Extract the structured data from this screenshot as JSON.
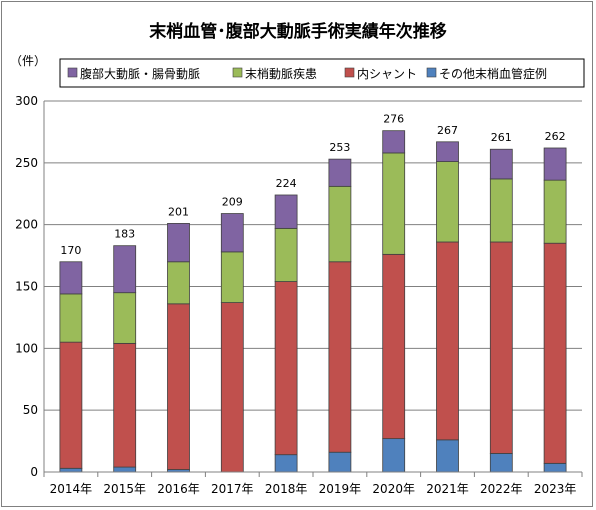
{
  "chart_data": {
    "type": "bar",
    "stacked": true,
    "title": "末梢血管･腹部大動脈手術実績年次推移",
    "ylabel": "（件）",
    "xlabel": "",
    "ylim": [
      0,
      300
    ],
    "yticks": [
      0,
      50,
      100,
      150,
      200,
      250,
      300
    ],
    "grid": true,
    "legend_position": "top-right",
    "categories": [
      "2014年",
      "2015年",
      "2016年",
      "2017年",
      "2018年",
      "2019年",
      "2020年",
      "2021年",
      "2022年",
      "2023年"
    ],
    "series": [
      {
        "name": "その他末梢血管症例",
        "color": "#4f81bd",
        "values": [
          3,
          4,
          2,
          0,
          14,
          16,
          27,
          26,
          15,
          7
        ]
      },
      {
        "name": "内シャント",
        "color": "#c0504d",
        "values": [
          102,
          100,
          134,
          137,
          140,
          154,
          149,
          160,
          171,
          178
        ]
      },
      {
        "name": "末梢動脈疾患",
        "color": "#9bbb59",
        "values": [
          39,
          41,
          34,
          41,
          43,
          61,
          82,
          65,
          51,
          51
        ]
      },
      {
        "name": "腹部大動脈・腸骨動脈",
        "color": "#8064a2",
        "values": [
          26,
          38,
          31,
          31,
          27,
          22,
          18,
          16,
          24,
          26
        ]
      }
    ],
    "totals": [
      170,
      183,
      201,
      209,
      224,
      253,
      276,
      267,
      261,
      262
    ],
    "legend_order": [
      "腹部大動脈・腸骨動脈",
      "末梢動脈疾患",
      "内シャント",
      "その他末梢血管症例"
    ]
  }
}
